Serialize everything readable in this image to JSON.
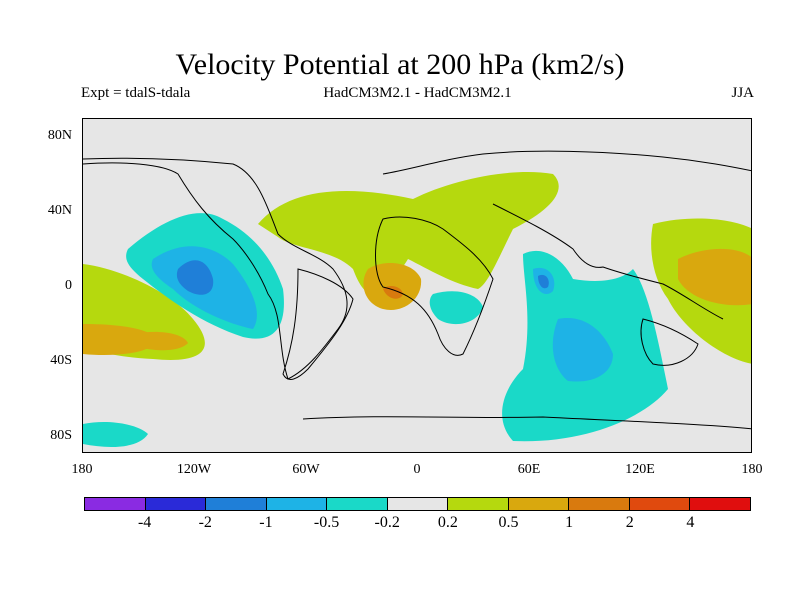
{
  "title": "Velocity Potential at 200 hPa (km2/s)",
  "subtitle_left": "Expt = tdalS-tdala",
  "subtitle_center": "HadCM3M2.1 - HadCM3M2.1",
  "subtitle_right": "JJA",
  "y_ticks": [
    "80N",
    "40N",
    "0",
    "40S",
    "80S"
  ],
  "x_ticks": [
    "180",
    "120W",
    "60W",
    "0",
    "60E",
    "120E",
    "180"
  ],
  "colorbar": {
    "colors": [
      "#8a2be2",
      "#2a2ad8",
      "#1f7fd8",
      "#1eb3e6",
      "#1ad9c8",
      "#e6e6e6",
      "#b5d90e",
      "#d9a80e",
      "#d97a0e",
      "#e04a0e",
      "#e00e0e"
    ],
    "labels": [
      "-4",
      "-2",
      "-1",
      "-0.5",
      "-0.2",
      "0.2",
      "0.5",
      "1",
      "2",
      "4"
    ]
  }
}
